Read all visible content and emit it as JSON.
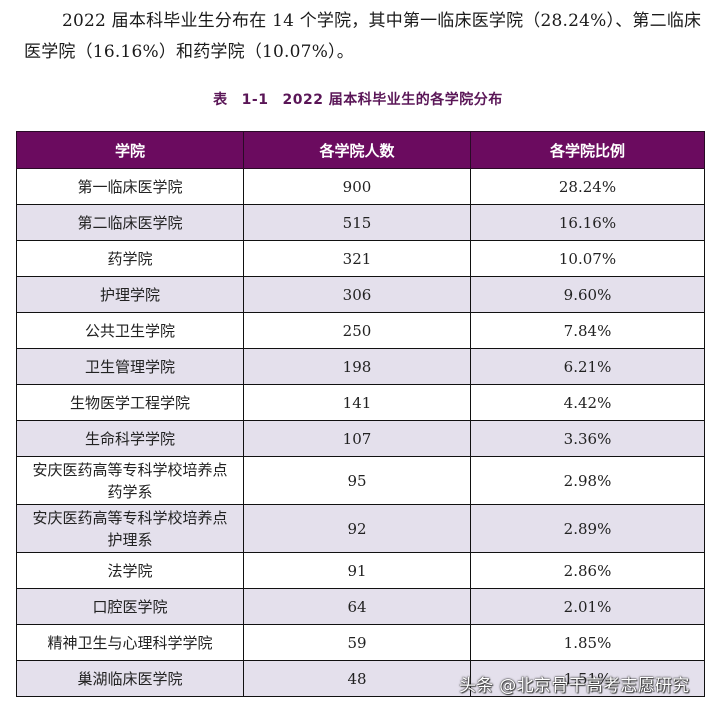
{
  "paragraph": {
    "text": "2022 届本科毕业生分布在 14 个学院，其中第一临床医学院（28.24%）、第二临床医学院（16.16%）和药学院（10.07%）。"
  },
  "caption": {
    "prefix": "表",
    "number": "1-1",
    "title": "2022 届本科毕业生的各学院分布"
  },
  "table": {
    "headers": [
      "学院",
      "各学院人数",
      "各学院比例"
    ],
    "rows": [
      {
        "college": "第一临床医学院",
        "count": "900",
        "ratio": "28.24%"
      },
      {
        "college": "第二临床医学院",
        "count": "515",
        "ratio": "16.16%"
      },
      {
        "college": "药学院",
        "count": "321",
        "ratio": "10.07%"
      },
      {
        "college": "护理学院",
        "count": "306",
        "ratio": "9.60%"
      },
      {
        "college": "公共卫生学院",
        "count": "250",
        "ratio": "7.84%"
      },
      {
        "college": "卫生管理学院",
        "count": "198",
        "ratio": "6.21%"
      },
      {
        "college": "生物医学工程学院",
        "count": "141",
        "ratio": "4.42%"
      },
      {
        "college": "生命科学学院",
        "count": "107",
        "ratio": "3.36%"
      },
      {
        "college": "安庆医药高等专科学校培养点药学系",
        "count": "95",
        "ratio": "2.98%"
      },
      {
        "college": "安庆医药高等专科学校培养点护理系",
        "count": "92",
        "ratio": "2.89%"
      },
      {
        "college": "法学院",
        "count": "91",
        "ratio": "2.86%"
      },
      {
        "college": "口腔医学院",
        "count": "64",
        "ratio": "2.01%"
      },
      {
        "college": "精神卫生与心理科学学院",
        "count": "59",
        "ratio": "1.85%"
      },
      {
        "college": "巢湖临床医学院",
        "count": "48",
        "ratio": "1.51%"
      }
    ]
  },
  "watermark": {
    "text": "头条 @北京骨干高考志愿研究"
  },
  "colors": {
    "header_bg": "#6b0b5f",
    "alt_row_bg": "#e4e0ec",
    "caption_color": "#5a1657"
  }
}
